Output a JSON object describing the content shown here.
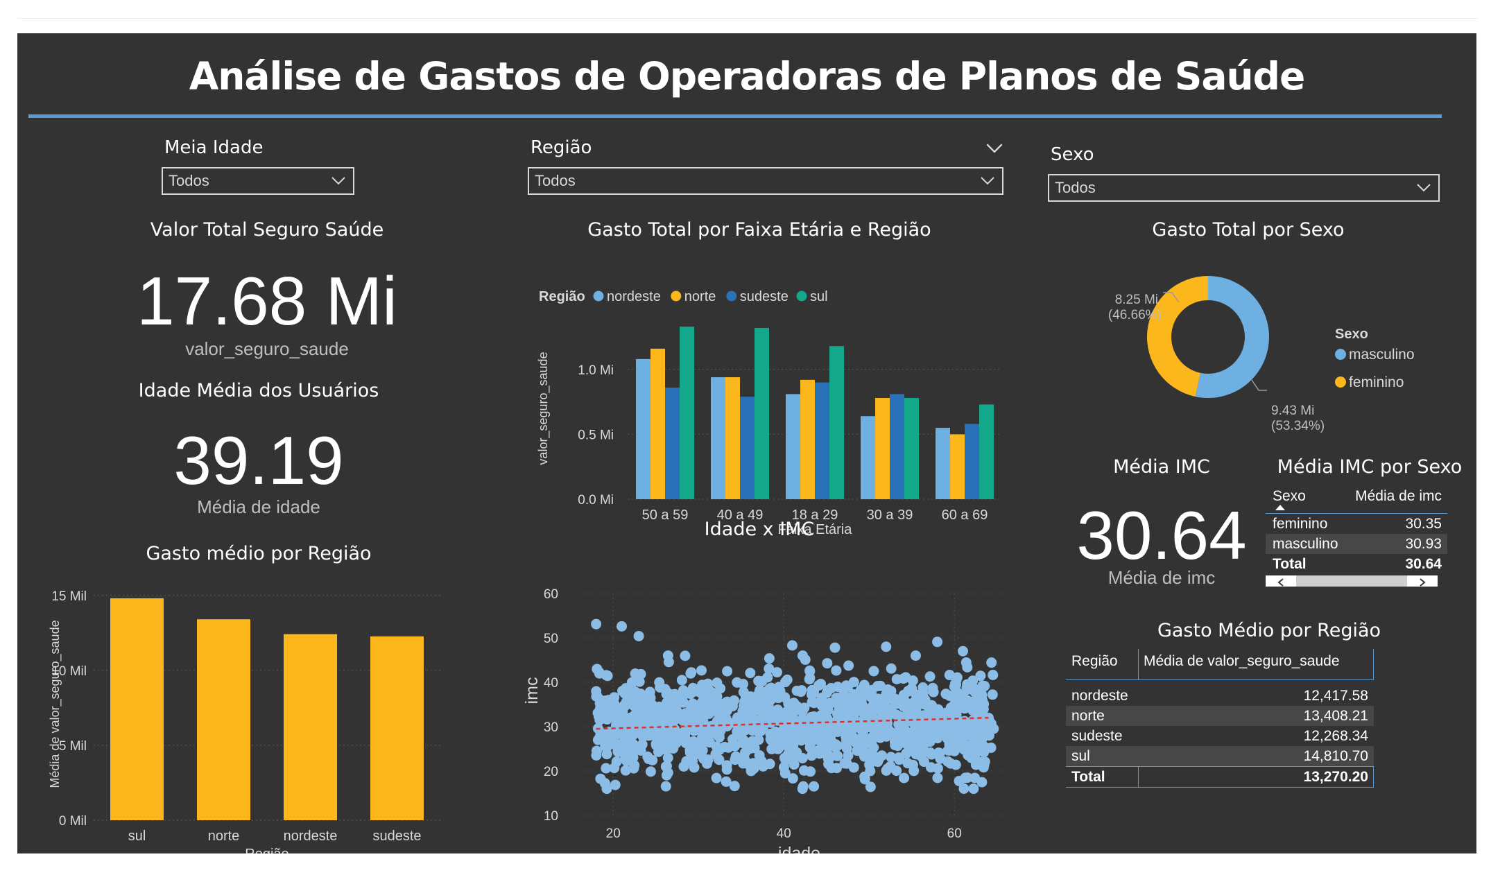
{
  "title": "Análise de Gastos de Operadoras de Planos de Saúde",
  "slicers": [
    {
      "label": "Meia Idade",
      "value": "Todos"
    },
    {
      "label": "Região",
      "value": "Todos"
    },
    {
      "label": "Sexo",
      "value": "Todos"
    }
  ],
  "kpis": {
    "valor_total": {
      "title": "Valor Total Seguro Saúde",
      "value": "17.68 Mi",
      "sub": "valor_seguro_saude"
    },
    "idade_media": {
      "title": "Idade Média dos Usuários",
      "value": "39.19",
      "sub": "Média de idade"
    },
    "media_imc": {
      "title": "Média IMC",
      "value": "30.64",
      "sub": "Média de imc"
    }
  },
  "colors": {
    "nordeste": "#6fb0e2",
    "norte": "#fbb71b",
    "sudeste": "#2a72b8",
    "sul": "#14a88a",
    "masculino": "#6fb0e2",
    "feminino": "#fbb71b",
    "bar": "#fbb71b",
    "scatter": "#8bbde6",
    "trend": "#e0302b",
    "accent": "#5b9bd5"
  },
  "chart_data": [
    {
      "id": "faixa_regiao",
      "type": "bar",
      "title": "Gasto Total por Faixa Etária e Região",
      "legend_title": "Região",
      "xlabel": "Faixa Etária",
      "ylabel": "valor_seguro_saude",
      "categories": [
        "50 a 59",
        "40 a 49",
        "18 a 29",
        "30 a 39",
        "60 a 69"
      ],
      "series": [
        {
          "name": "nordeste",
          "values": [
            1.08,
            0.94,
            0.81,
            0.64,
            0.55
          ]
        },
        {
          "name": "norte",
          "values": [
            1.16,
            0.94,
            0.92,
            0.78,
            0.5
          ]
        },
        {
          "name": "sudeste",
          "values": [
            0.86,
            0.79,
            0.9,
            0.81,
            0.58
          ]
        },
        {
          "name": "sul",
          "values": [
            1.33,
            1.32,
            1.18,
            0.78,
            0.73
          ]
        }
      ],
      "yticks": [
        "0.0 Mi",
        "0.5 Mi",
        "1.0 Mi"
      ],
      "ylim": [
        0,
        1.4
      ]
    },
    {
      "id": "sexo_donut",
      "type": "pie",
      "title": "Gasto Total por Sexo",
      "legend_title": "Sexo",
      "slices": [
        {
          "name": "masculino",
          "value": 9.43,
          "label": "9.43 Mi",
          "pct": "(53.34%)"
        },
        {
          "name": "feminino",
          "value": 8.25,
          "label": "8.25 Mi",
          "pct": "(46.66%)"
        }
      ]
    },
    {
      "id": "gasto_medio_regiao",
      "type": "bar",
      "title": "Gasto médio por Região",
      "xlabel": "Região",
      "ylabel": "Média de valor_seguro_saude",
      "categories": [
        "sul",
        "norte",
        "nordeste",
        "sudeste"
      ],
      "values": [
        14810.7,
        13408.21,
        12417.58,
        12268.34
      ],
      "yticks": [
        "0 Mil",
        "5 Mil",
        "10 Mil",
        "15 Mil"
      ],
      "ylim": [
        0,
        15500
      ]
    },
    {
      "id": "idade_imc",
      "type": "scatter",
      "title": "Idade x IMC",
      "xlabel": "idade",
      "ylabel": "imc",
      "xticks": [
        20,
        40,
        60
      ],
      "yticks": [
        10,
        20,
        30,
        40,
        50,
        60
      ],
      "xlim": [
        16,
        66
      ],
      "ylim": [
        10,
        60
      ],
      "trend": [
        [
          18,
          29.5
        ],
        [
          64,
          32.0
        ]
      ],
      "outliers": [
        [
          18,
          53.1
        ],
        [
          21,
          52.6
        ],
        [
          23,
          50.4
        ],
        [
          58,
          49.1
        ],
        [
          41,
          48.3
        ],
        [
          46,
          47.8
        ],
        [
          52,
          48.0
        ],
        [
          61,
          47.0
        ]
      ]
    },
    {
      "id": "imc_sexo_table",
      "type": "table",
      "title": "Média IMC por Sexo",
      "columns": [
        "Sexo",
        "Média de imc"
      ],
      "rows": [
        [
          "feminino",
          "30.35"
        ],
        [
          "masculino",
          "30.93"
        ]
      ],
      "total": [
        "Total",
        "30.64"
      ]
    },
    {
      "id": "gasto_medio_regiao_table",
      "type": "table",
      "title": "Gasto Médio por Região",
      "columns": [
        "Região",
        "Média de valor_seguro_saude"
      ],
      "rows": [
        [
          "nordeste",
          "12,417.58"
        ],
        [
          "norte",
          "13,408.21"
        ],
        [
          "sudeste",
          "12,268.34"
        ],
        [
          "sul",
          "14,810.70"
        ]
      ],
      "total": [
        "Total",
        "13,270.20"
      ]
    }
  ]
}
